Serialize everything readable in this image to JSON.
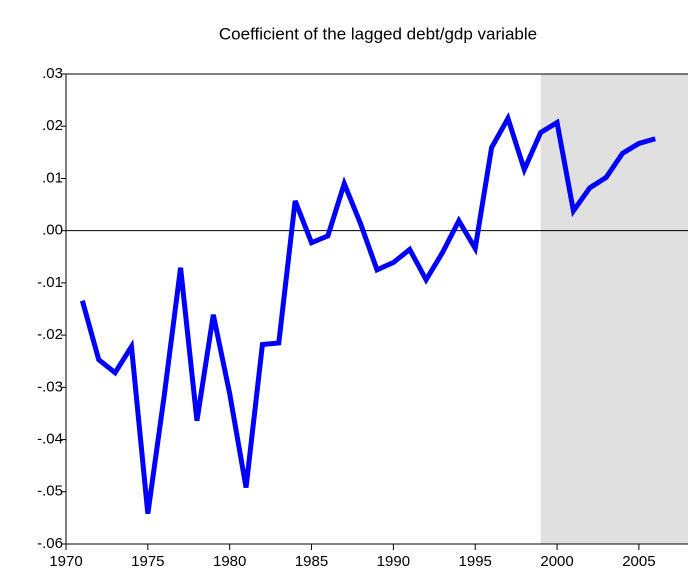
{
  "chart_data": {
    "type": "line",
    "title": "Coefficient of the lagged debt/gdp variable",
    "x": [
      1971,
      1972,
      1973,
      1974,
      1975,
      1976,
      1977,
      1978,
      1979,
      1980,
      1981,
      1982,
      1983,
      1984,
      1985,
      1986,
      1987,
      1988,
      1989,
      1990,
      1991,
      1992,
      1993,
      1994,
      1995,
      1996,
      1997,
      1998,
      1999,
      2000,
      2001,
      2002,
      2003,
      2004,
      2005,
      2006
    ],
    "series": [
      {
        "color": "#0000ff",
        "values": [
          -0.0134,
          -0.0247,
          -0.0272,
          -0.0222,
          -0.0542,
          -0.0316,
          -0.0071,
          -0.0364,
          -0.0161,
          -0.0312,
          -0.0492,
          -0.0218,
          -0.0215,
          0.0057,
          -0.0023,
          -0.001,
          0.009,
          0.0013,
          -0.0075,
          -0.0061,
          -0.0036,
          -0.0094,
          -0.0042,
          0.0019,
          -0.0034,
          0.0159,
          0.0215,
          0.0117,
          0.0188,
          0.0207,
          0.0038,
          0.0082,
          0.0102,
          0.0148,
          0.0167,
          0.0176
        ]
      }
    ],
    "xlim": [
      1970,
      2008
    ],
    "xticks": [
      1970,
      1975,
      1980,
      1985,
      1990,
      1995,
      2000,
      2005
    ],
    "ylim": [
      -0.06,
      0.03
    ],
    "yticks": [
      {
        "value": -0.06,
        "label": "-.06"
      },
      {
        "value": -0.05,
        "label": "-.05"
      },
      {
        "value": -0.04,
        "label": "-.04"
      },
      {
        "value": -0.03,
        "label": "-.03"
      },
      {
        "value": -0.02,
        "label": "-.02"
      },
      {
        "value": -0.01,
        "label": "-.01"
      },
      {
        "value": 0,
        "label": ".00"
      },
      {
        "value": 0.01,
        "label": ".01"
      },
      {
        "value": 0.02,
        "label": ".02"
      },
      {
        "value": 0.03,
        "label": ".03"
      }
    ],
    "shade": [
      1999,
      2008
    ],
    "shade_color": "#e0e0e0"
  }
}
